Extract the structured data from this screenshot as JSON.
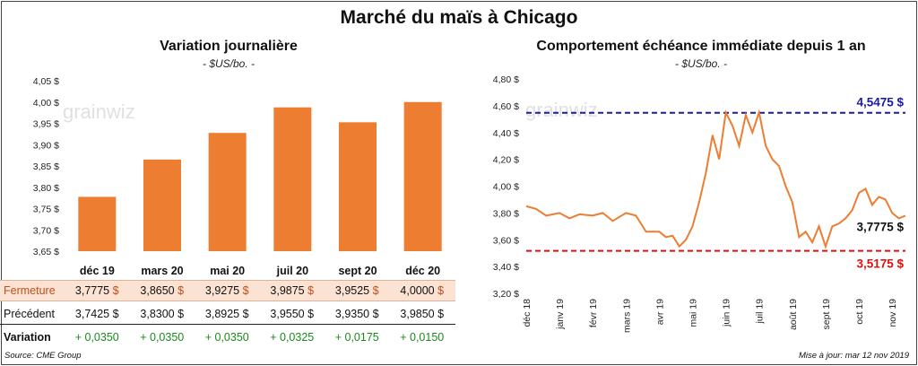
{
  "title": "Marché du maïs à Chicago",
  "watermark": "grainwiz",
  "source": "Source: CME Group",
  "updated": "Mise à jour: mar 12 nov 2019",
  "colors": {
    "bar": "#ed7d31",
    "line": "#ed7d31",
    "high": "#1a1aa6",
    "low": "#e01010",
    "green": "#1a8a1a"
  },
  "chart_data": [
    {
      "type": "bar",
      "title": "Variation journalière",
      "subtitle": "- $US/bo. -",
      "categories": [
        "déc 19",
        "mars 20",
        "mai 20",
        "juil 20",
        "sept 20",
        "déc 20"
      ],
      "values": [
        3.7775,
        3.865,
        3.9275,
        3.9875,
        3.9525,
        4.0
      ],
      "ylim": [
        3.65,
        4.05
      ],
      "yticks": [
        "3,65 $",
        "3,70 $",
        "3,75 $",
        "3,80 $",
        "3,85 $",
        "3,90 $",
        "3,95 $",
        "4,00 $",
        "4,05 $"
      ],
      "grid": false
    },
    {
      "type": "line",
      "title": "Comportement échéance immédiate depuis 1 an",
      "subtitle": "- $US/bo. -",
      "ylim": [
        3.2,
        4.8
      ],
      "yticks": [
        "3,20 $",
        "3,40 $",
        "3,60 $",
        "3,80 $",
        "4,00 $",
        "4,20 $",
        "4,40 $",
        "4,60 $",
        "4,80 $"
      ],
      "xticks": [
        "déc 18",
        "janv 19",
        "févr 19",
        "mars 19",
        "avr 19",
        "mai 19",
        "juin 19",
        "juil 19",
        "août 19",
        "sept 19",
        "oct 19",
        "nov 19"
      ],
      "x": [
        0,
        0.3,
        0.6,
        1.0,
        1.3,
        1.6,
        2.0,
        2.3,
        2.6,
        3.0,
        3.3,
        3.6,
        4.0,
        4.2,
        4.4,
        4.6,
        4.8,
        5.0,
        5.2,
        5.4,
        5.6,
        5.8,
        6.0,
        6.2,
        6.4,
        6.6,
        6.8,
        7.0,
        7.2,
        7.4,
        7.6,
        7.8,
        8.0,
        8.2,
        8.4,
        8.6,
        8.8,
        9.0,
        9.2,
        9.4,
        9.6,
        9.8,
        10.0,
        10.2,
        10.4,
        10.6,
        10.8,
        11.0,
        11.2,
        11.4
      ],
      "values": [
        3.85,
        3.83,
        3.78,
        3.8,
        3.76,
        3.79,
        3.78,
        3.8,
        3.74,
        3.8,
        3.78,
        3.66,
        3.66,
        3.62,
        3.63,
        3.55,
        3.6,
        3.7,
        3.88,
        4.1,
        4.38,
        4.2,
        4.55,
        4.45,
        4.3,
        4.53,
        4.4,
        4.55,
        4.3,
        4.2,
        4.15,
        4.0,
        3.88,
        3.62,
        3.66,
        3.58,
        3.7,
        3.55,
        3.7,
        3.72,
        3.76,
        3.82,
        3.95,
        3.98,
        3.86,
        3.92,
        3.9,
        3.8,
        3.76,
        3.78
      ],
      "high": {
        "value": 4.5475,
        "label": "4,5475 $"
      },
      "low": {
        "value": 3.5175,
        "label": "3,5175 $"
      },
      "last": {
        "value": 3.7775,
        "label": "3,7775 $"
      },
      "grid": false
    }
  ],
  "table": {
    "rows": [
      {
        "label": "Fermeture",
        "cells": [
          "3,7775",
          "3,8650",
          "3,9275",
          "3,9875",
          "3,9525",
          "4,0000"
        ],
        "suffix": "$"
      },
      {
        "label": "Précédent",
        "cells": [
          "3,7425",
          "3,8300",
          "3,8925",
          "3,9550",
          "3,9350",
          "3,9850"
        ],
        "suffix": "$"
      },
      {
        "label": "Variation",
        "cells": [
          "+ 0,0350",
          "+ 0,0350",
          "+ 0,0350",
          "+ 0,0325",
          "+ 0,0175",
          "+ 0,0150"
        ],
        "suffix": ""
      }
    ]
  }
}
